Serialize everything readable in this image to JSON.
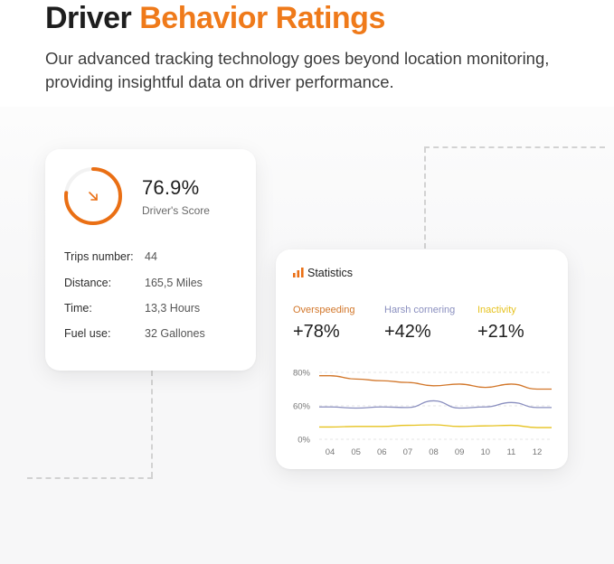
{
  "header": {
    "title_part1": "Driver",
    "title_part2": "Behavior Ratings",
    "subtitle": "Our advanced tracking technology goes beyond location monitoring, providing insightful data on driver performance."
  },
  "score_card": {
    "score": "76.9%",
    "score_label": "Driver's Score",
    "score_fraction": 0.769,
    "rows": [
      {
        "label": "Trips number:",
        "value": "44"
      },
      {
        "label": "Distance:",
        "value": "165,5 Miles"
      },
      {
        "label": "Time:",
        "value": "13,3 Hours"
      },
      {
        "label": "Fuel use:",
        "value": "32 Gallones"
      }
    ]
  },
  "stats_card": {
    "title": "Statistics",
    "metrics": [
      {
        "label": "Overspeeding",
        "value": "+78%",
        "color": "#d2772b"
      },
      {
        "label": "Harsh cornering",
        "value": "+42%",
        "color": "#8a8fbf"
      },
      {
        "label": "Inactivity",
        "value": "+21%",
        "color": "#e6c21e"
      }
    ]
  },
  "colors": {
    "accent": "#ef7a1a",
    "overspeeding": "#d2772b",
    "harsh_cornering": "#8a8fbf",
    "inactivity": "#e6c21e"
  },
  "chart_data": {
    "type": "line",
    "x": [
      "04",
      "05",
      "06",
      "07",
      "08",
      "09",
      "10",
      "11",
      "12"
    ],
    "y_ticks": [
      "80%",
      "60%",
      "0%"
    ],
    "series": [
      {
        "name": "Overspeeding",
        "values": [
          78,
          76,
          75,
          74,
          72,
          73,
          71,
          73,
          70
        ]
      },
      {
        "name": "Harsh cornering",
        "values": [
          58,
          56,
          58,
          57,
          63,
          56,
          58,
          62,
          57
        ]
      },
      {
        "name": "Inactivity",
        "values": [
          22,
          23,
          23,
          25,
          26,
          23,
          24,
          25,
          21
        ]
      }
    ]
  }
}
